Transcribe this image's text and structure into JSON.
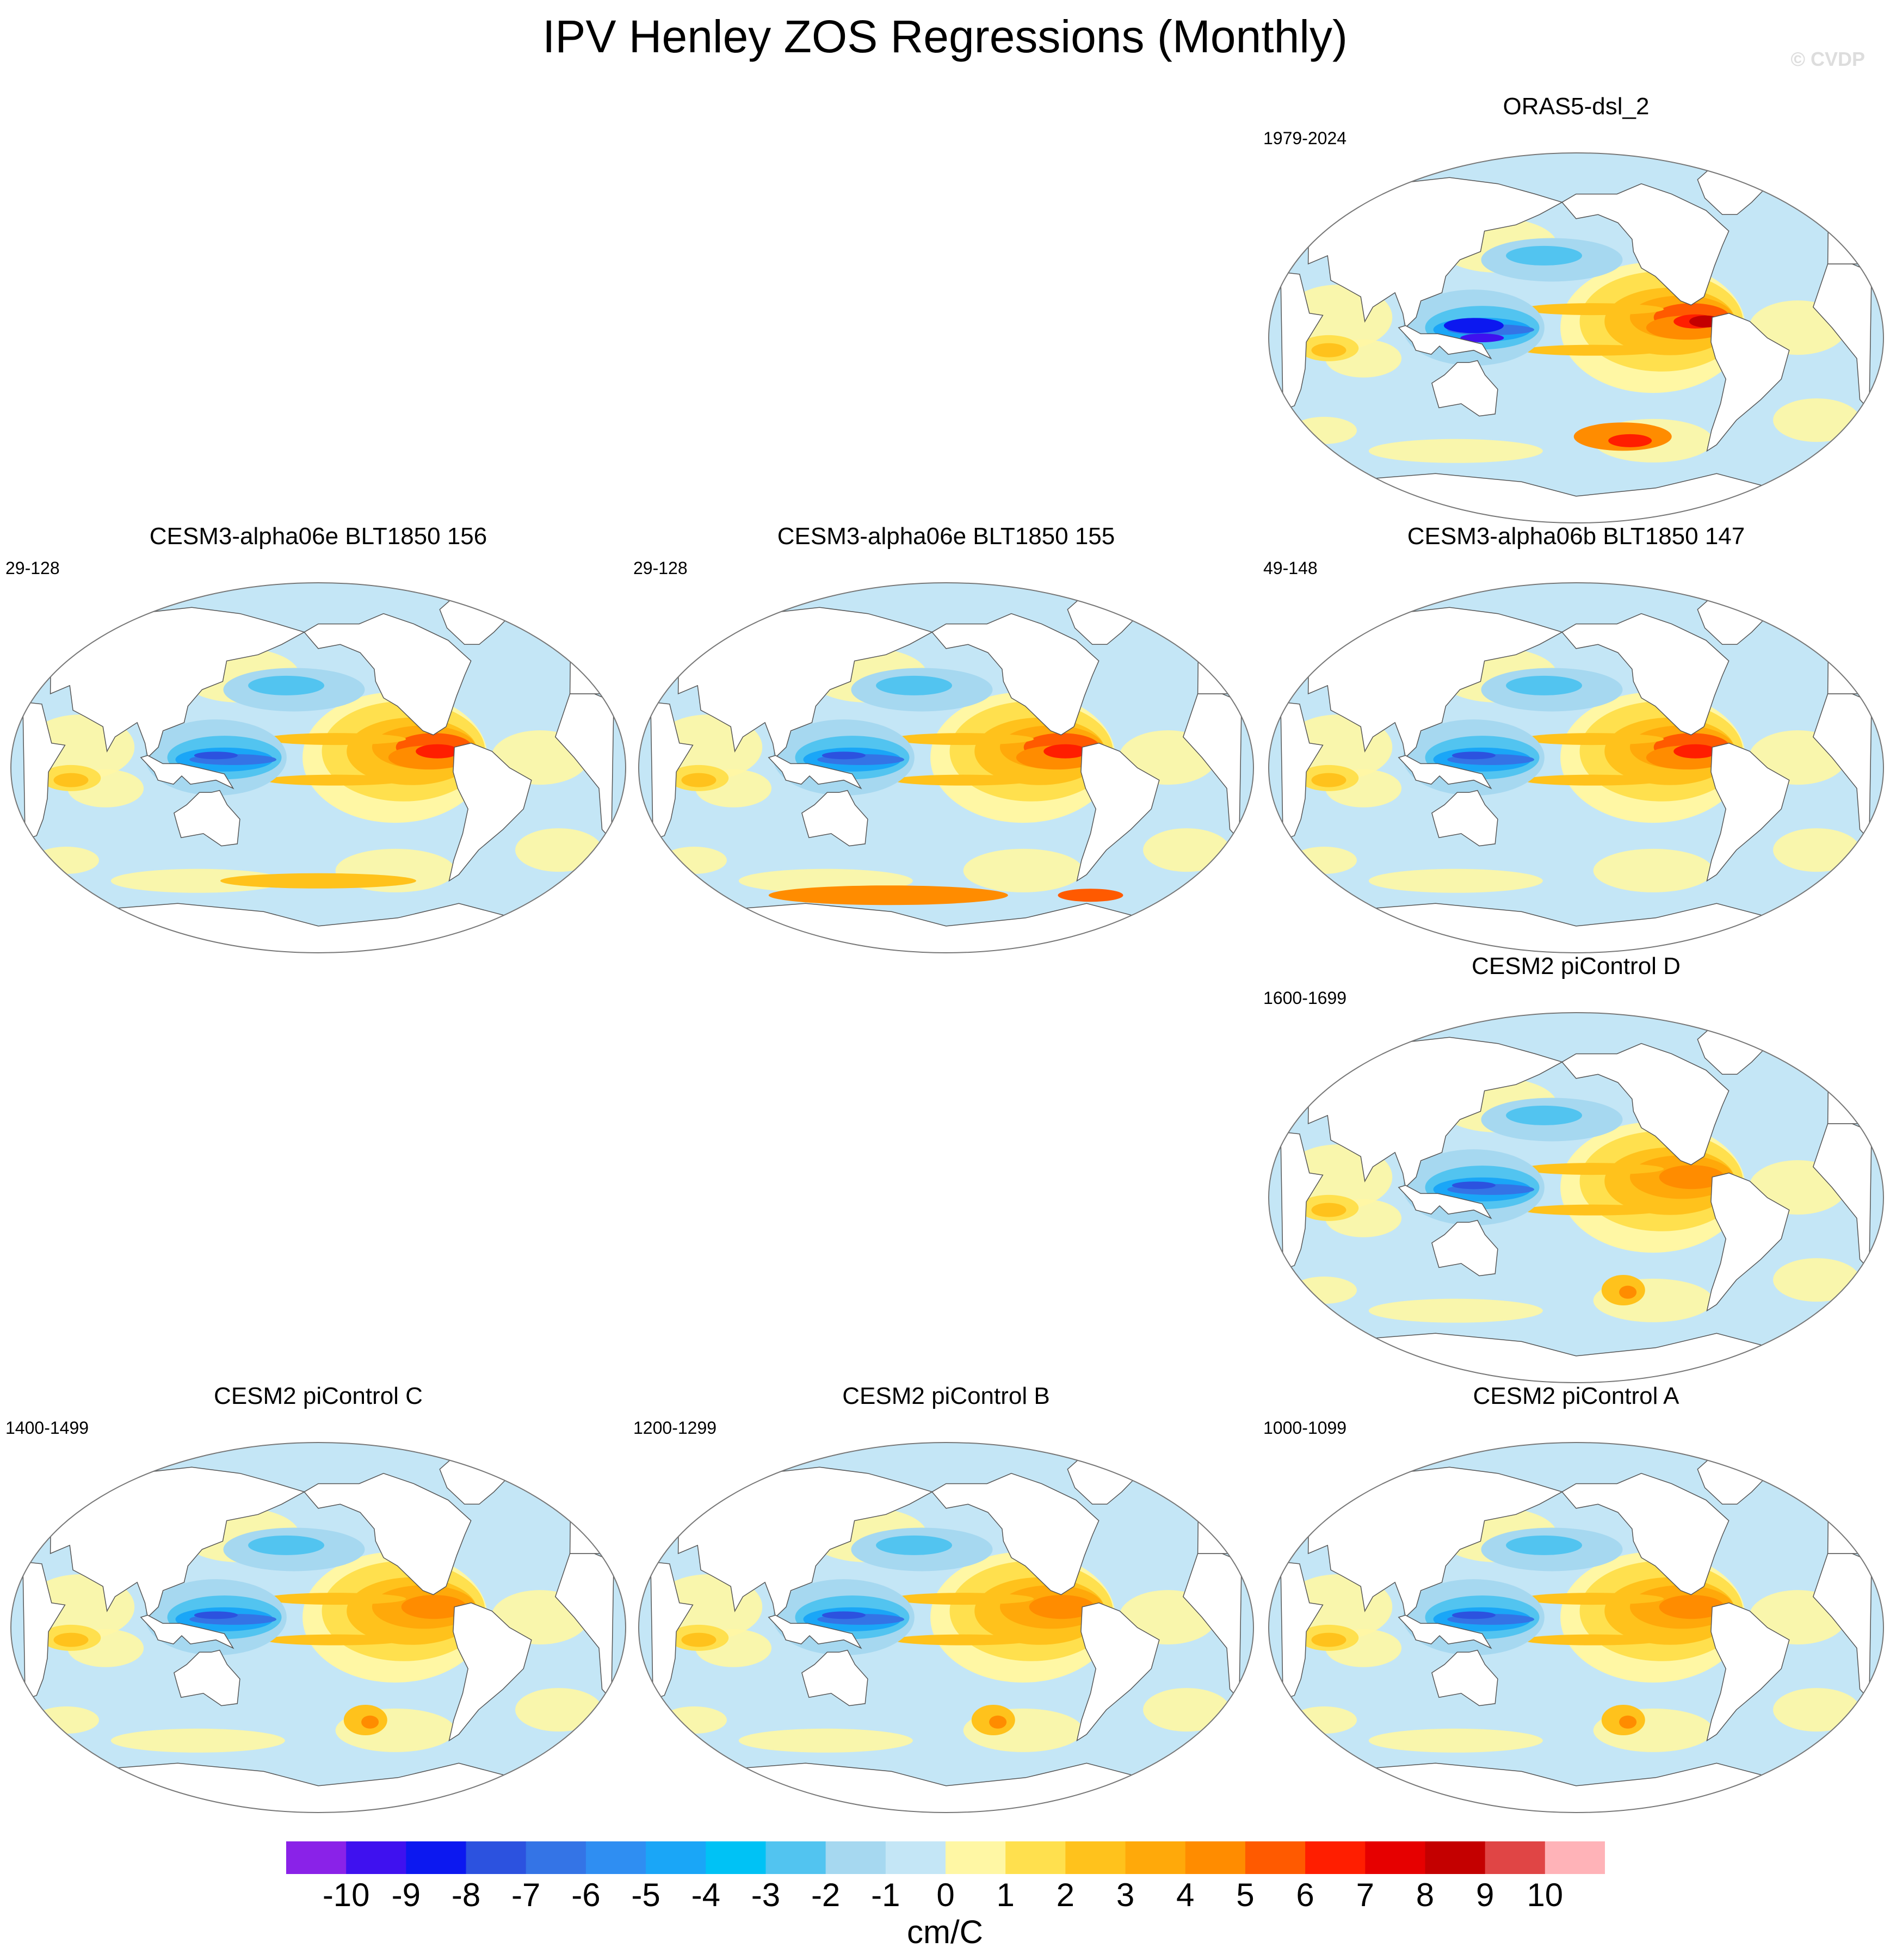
{
  "page": {
    "title": "IPV Henley ZOS Regressions (Monthly)",
    "watermark": "© CVDP"
  },
  "panels": [
    {
      "title": "ORAS5-dsl_2",
      "period": "1979-2024",
      "variant": "obs"
    },
    {
      "title": "CESM3-alpha06e BLT1850 156",
      "period": "29-128",
      "variant": "cesm3_156"
    },
    {
      "title": "CESM3-alpha06e BLT1850 155",
      "period": "29-128",
      "variant": "cesm3_155"
    },
    {
      "title": "CESM3-alpha06b BLT1850 147",
      "period": "49-148",
      "variant": "cesm3_147"
    },
    {
      "title": "CESM2 piControl D",
      "period": "1600-1699",
      "variant": "cesm2"
    },
    {
      "title": "CESM2 piControl C",
      "period": "1400-1499",
      "variant": "cesm2"
    },
    {
      "title": "CESM2 piControl B",
      "period": "1200-1299",
      "variant": "cesm2"
    },
    {
      "title": "CESM2 piControl A",
      "period": "1000-1099",
      "variant": "cesm2"
    }
  ],
  "chart_data": {
    "type": "heatmap",
    "title": "IPV Henley ZOS Regressions (Monthly)",
    "projection": "Robinson (Pacific-centred)",
    "units": "cm/C",
    "colorbar": {
      "levels": [
        "-10",
        "-9",
        "-8",
        "-7",
        "-6",
        "-5",
        "-4",
        "-3",
        "-2",
        "-1",
        "0",
        "1",
        "2",
        "3",
        "4",
        "5",
        "6",
        "7",
        "8",
        "9",
        "10"
      ],
      "colors": [
        "#8a22e8",
        "#3f11ef",
        "#0c18f0",
        "#2c52df",
        "#3474e6",
        "#2f8ef2",
        "#1aa6f7",
        "#00c2f5",
        "#52c4f0",
        "#a6d8f0",
        "#c4e6f6",
        "#fff7a4",
        "#ffe04e",
        "#ffc21c",
        "#ffa90a",
        "#ff8c00",
        "#ff5a00",
        "#ff1e00",
        "#e60000",
        "#c40000",
        "#e04545",
        "#ffb3b8"
      ]
    },
    "panels": [
      {
        "name": "ORAS5-dsl_2",
        "period": "1979-2024"
      },
      {
        "name": "CESM3-alpha06e BLT1850 156",
        "period": "29-128"
      },
      {
        "name": "CESM3-alpha06e BLT1850 155",
        "period": "29-128"
      },
      {
        "name": "CESM3-alpha06b BLT1850 147",
        "period": "49-148"
      },
      {
        "name": "CESM2 piControl D",
        "period": "1600-1699"
      },
      {
        "name": "CESM2 piControl C",
        "period": "1400-1499"
      },
      {
        "name": "CESM2 piControl B",
        "period": "1200-1299"
      },
      {
        "name": "CESM2 piControl A",
        "period": "1000-1099"
      }
    ]
  }
}
